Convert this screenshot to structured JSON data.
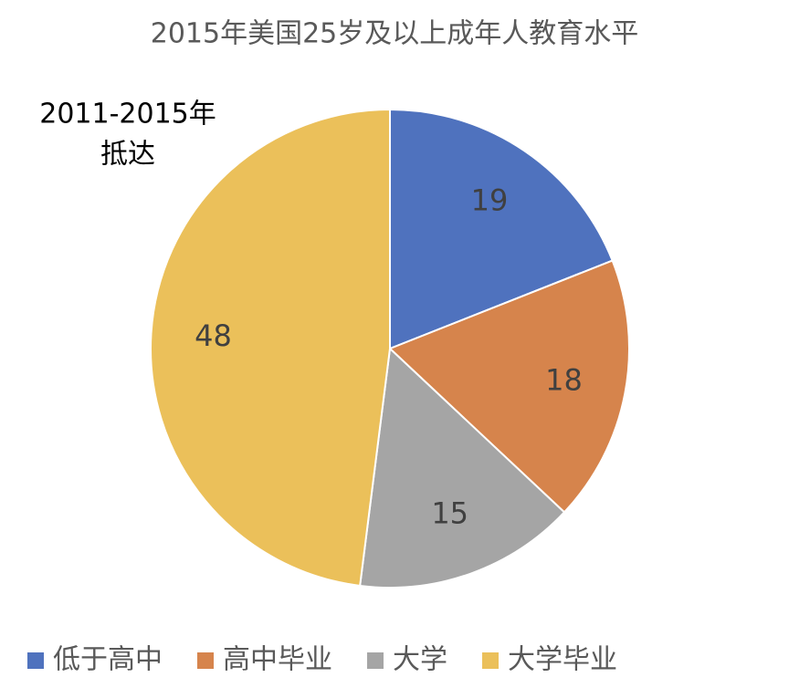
{
  "chart_data": {
    "type": "pie",
    "title": "2015年美国25岁及以上成年人教育水平",
    "annotation": [
      "2011-2015年",
      "抵达"
    ],
    "categories": [
      "低于高中",
      "高中毕业",
      "大学",
      "大学毕业"
    ],
    "values": [
      19,
      18,
      15,
      48
    ],
    "colors": [
      "#4f72be",
      "#d6844c",
      "#a5a5a5",
      "#ebc05a"
    ],
    "legend": "bottom"
  }
}
